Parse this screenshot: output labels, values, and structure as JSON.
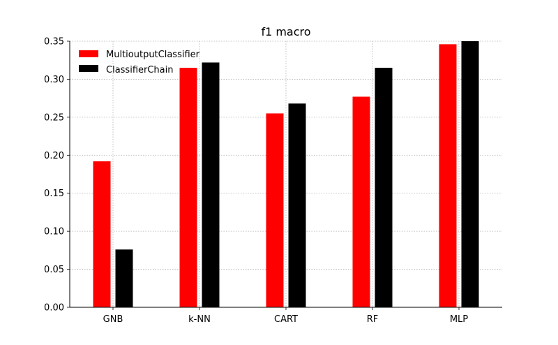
{
  "chart_data": {
    "type": "bar",
    "title": "f1 macro",
    "xlabel": "",
    "ylabel": "",
    "categories": [
      "GNB",
      "k-NN",
      "CART",
      "RF",
      "MLP"
    ],
    "series": [
      {
        "name": "MultioutputClassifier",
        "color": "#ff0000",
        "values": [
          0.192,
          0.315,
          0.255,
          0.277,
          0.346
        ]
      },
      {
        "name": "ClassifierChain",
        "color": "#000000",
        "values": [
          0.076,
          0.322,
          0.268,
          0.315,
          0.35
        ]
      }
    ],
    "ylim": [
      0,
      0.35
    ],
    "yticks": [
      "0.00",
      "0.05",
      "0.10",
      "0.15",
      "0.20",
      "0.25",
      "0.30",
      "0.35"
    ],
    "grid": true,
    "legend_position": "top-left"
  }
}
